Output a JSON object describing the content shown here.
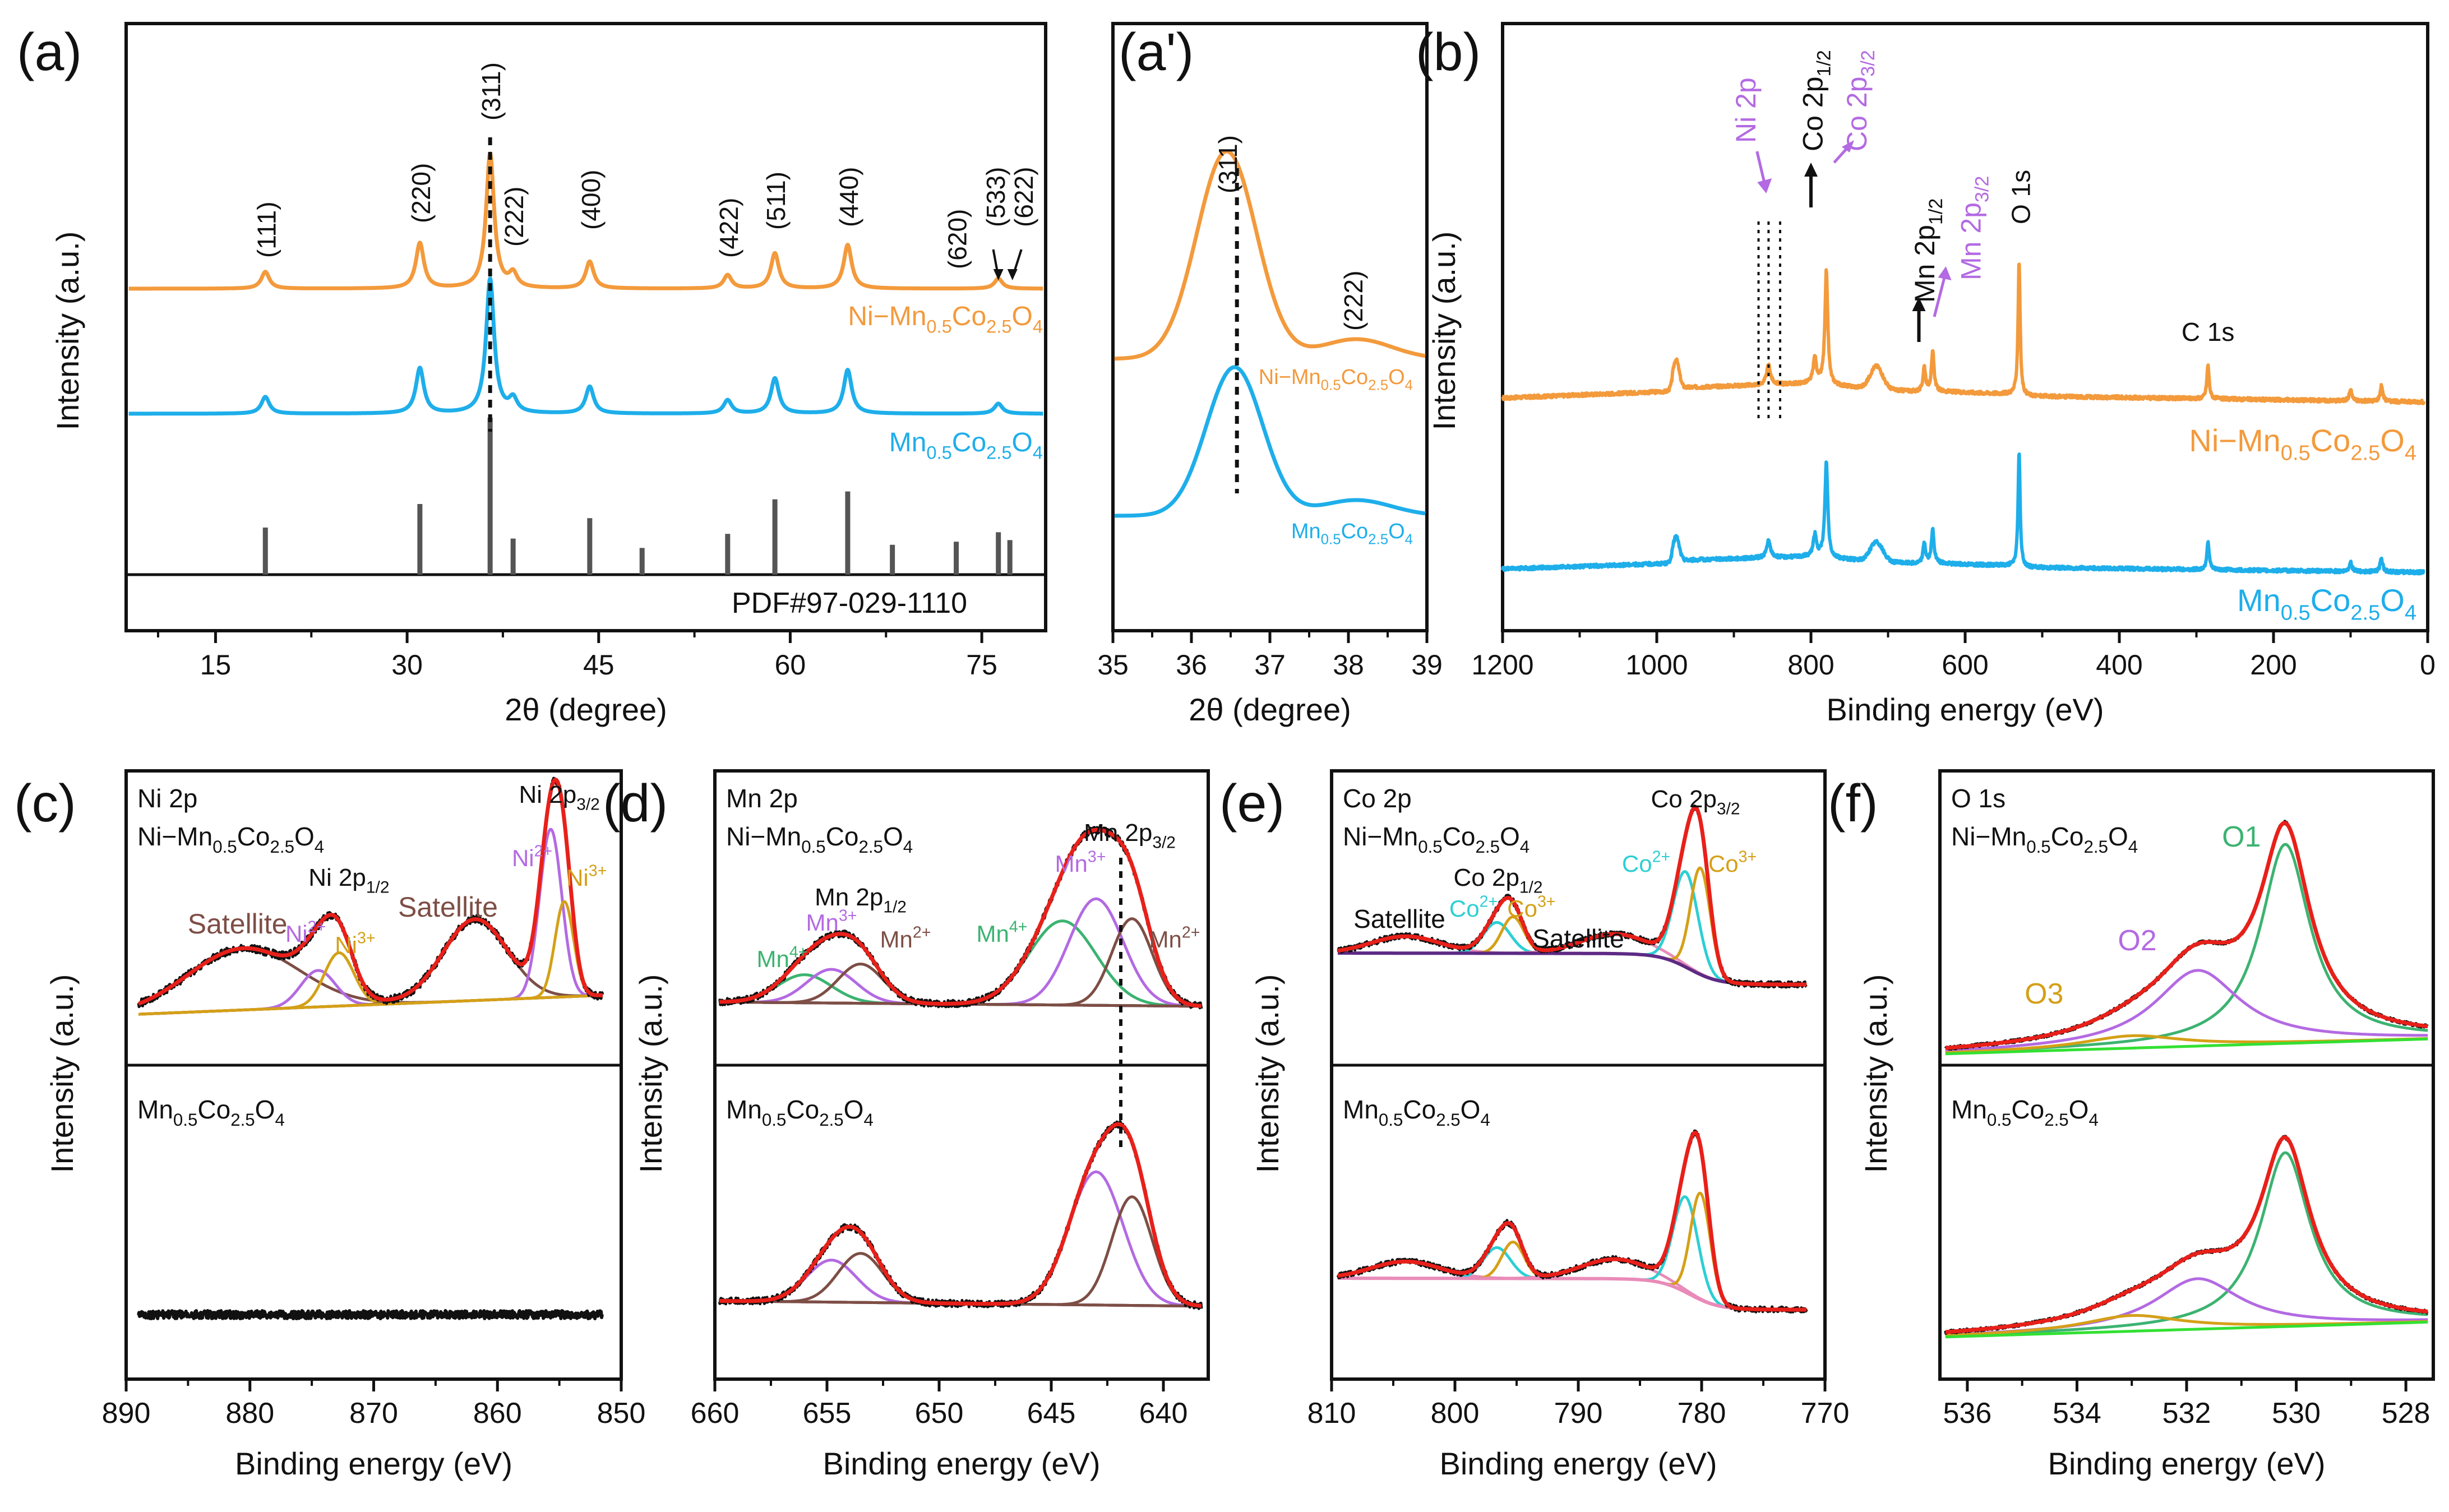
{
  "colors": {
    "orange": "#F39A3C",
    "blue": "#1EAEEA",
    "black": "#111111",
    "red": "#E8201A",
    "purple": "#B36AE2",
    "brown": "#7D4E45",
    "gold": "#D4A017",
    "green": "#3CB371",
    "cyan": "#2CCFD3",
    "darkpurple": "#5E2A84",
    "pink": "#E98BB8",
    "lime": "#33E033",
    "gray": "#555555"
  },
  "chart_data": [
    {
      "id": "a",
      "type": "line",
      "panel_label": "(a)",
      "xlabel": "2θ (degree)",
      "ylabel": "Intensity (a.u.)",
      "xlim": [
        8,
        80
      ],
      "xticks": [
        15,
        30,
        45,
        60,
        75
      ],
      "series": [
        {
          "name": "Ni−Mn0.5Co2.5O4",
          "label_html": "Ni−Mn<tspan>0.5</tspan>Co<tspan>2.5</tspan>O<tspan>4</tspan>",
          "color_key": "orange",
          "peaks_2theta": [
            18.9,
            31.0,
            36.5,
            38.3,
            44.3,
            55.1,
            58.8,
            64.5,
            76.3
          ],
          "relative_heights": [
            0.1,
            0.27,
            0.8,
            0.08,
            0.16,
            0.08,
            0.21,
            0.26,
            0.06
          ]
        },
        {
          "name": "Mn0.5Co2.5O4",
          "color_key": "blue",
          "peaks_2theta": [
            18.9,
            31.0,
            36.5,
            38.3,
            44.3,
            55.1,
            58.8,
            64.5,
            76.3
          ],
          "relative_heights": [
            0.1,
            0.27,
            0.8,
            0.08,
            0.16,
            0.08,
            0.21,
            0.26,
            0.06
          ]
        }
      ],
      "reference": {
        "label": "PDF#97-029-1110",
        "positions": [
          18.9,
          31.0,
          36.5,
          38.3,
          44.3,
          48.4,
          55.1,
          58.8,
          64.5,
          68.0,
          73.0,
          76.3,
          77.2
        ],
        "heights": [
          0.3,
          0.45,
          1.0,
          0.23,
          0.36,
          0.17,
          0.26,
          0.48,
          0.53,
          0.19,
          0.21,
          0.27,
          0.22
        ]
      },
      "annotations": [
        "(111)",
        "(220)",
        "(311)",
        "(222)",
        "(400)",
        "(422)",
        "(511)",
        "(440)",
        "(620)",
        "(533)",
        "(622)"
      ]
    },
    {
      "id": "a2",
      "type": "line",
      "panel_label": "(a')",
      "xlabel": "2θ (degree)",
      "xlim": [
        35,
        39
      ],
      "xticks": [
        35,
        36,
        37,
        38,
        39
      ],
      "series": [
        {
          "name": "Ni−Mn0.5Co2.5O4",
          "color_key": "orange",
          "peak_2theta": 36.45,
          "shoulder_2theta": 38.1
        },
        {
          "name": "Mn0.5Co2.5O4",
          "color_key": "blue",
          "peak_2theta": 36.55,
          "shoulder_2theta": 38.1
        }
      ],
      "annotations": [
        "(311)",
        "(222)"
      ]
    },
    {
      "id": "b",
      "type": "line",
      "panel_label": "(b)",
      "xlabel": "Binding energy (eV)",
      "ylabel": "Intensity (a.u.)",
      "xlim": [
        1200,
        0
      ],
      "xticks": [
        1200,
        1000,
        800,
        600,
        400,
        200,
        0
      ],
      "series": [
        {
          "name": "Ni−Mn0.5Co2.5O4",
          "color_key": "orange"
        },
        {
          "name": "Mn0.5Co2.5O4",
          "color_key": "blue"
        }
      ],
      "annotations": [
        "Ni 2p",
        "Co 2p1/2",
        "Co 2p3/2",
        "Mn 2p1/2",
        "Mn 2p3/2",
        "O 1s",
        "C 1s"
      ],
      "peaks_eV": {
        "Ni 2p": 855,
        "Co 2p1/2": 795,
        "Co 2p3/2": 780,
        "Mn 2p1/2": 653,
        "Mn 2p3/2": 642,
        "O 1s": 530,
        "C 1s": 285
      }
    },
    {
      "id": "c",
      "type": "line",
      "panel_label": "(c)",
      "xlabel": "Binding energy (eV)",
      "ylabel": "Intensity (a.u.)",
      "xlim": [
        890,
        850
      ],
      "xticks": [
        890,
        880,
        870,
        860,
        850
      ],
      "top_title": [
        "Ni 2p",
        "Ni−Mn0.5Co2.5O4"
      ],
      "bottom_title": "Mn0.5Co2.5O4",
      "components": [
        {
          "name": "Satellite",
          "center_eV": 880.5,
          "color_key": "brown"
        },
        {
          "name": "Ni2+",
          "center_eV": 874.5,
          "color_key": "purple"
        },
        {
          "name": "Ni3+",
          "center_eV": 872.8,
          "color_key": "gold"
        },
        {
          "name": "Satellite",
          "center_eV": 861.8,
          "color_key": "brown"
        },
        {
          "name": "Ni2+",
          "center_eV": 855.7,
          "color_key": "purple"
        },
        {
          "name": "Ni3+",
          "center_eV": 854.6,
          "color_key": "gold"
        }
      ],
      "annotations": [
        "Satellite",
        "Ni2+",
        "Ni 2p1/2",
        "Ni3+",
        "Satellite",
        "Ni 2p3/2",
        "Ni2+",
        "Ni3+"
      ]
    },
    {
      "id": "d",
      "type": "line",
      "panel_label": "(d)",
      "xlabel": "Binding energy (eV)",
      "ylabel": "Intensity (a.u.)",
      "xlim": [
        660,
        638
      ],
      "xticks": [
        660,
        655,
        650,
        645,
        640
      ],
      "top_title": [
        "Mn 2p",
        "Ni−Mn0.5Co2.5O4"
      ],
      "bottom_title": "Mn0.5Co2.5O4",
      "components": [
        {
          "name": "Mn4+",
          "center_eV": 656.0,
          "color_key": "green"
        },
        {
          "name": "Mn3+",
          "center_eV": 654.8,
          "color_key": "purple"
        },
        {
          "name": "Mn2+",
          "center_eV": 653.5,
          "color_key": "brown"
        },
        {
          "name": "Mn4+",
          "center_eV": 644.5,
          "color_key": "green"
        },
        {
          "name": "Mn3+",
          "center_eV": 643.0,
          "color_key": "purple"
        },
        {
          "name": "Mn2+",
          "center_eV": 641.5,
          "color_key": "brown"
        }
      ],
      "annotations": [
        "Mn 2p1/2",
        "Mn4+",
        "Mn3+",
        "Mn2+",
        "Mn 2p3/2",
        "Mn3+",
        "Mn4+",
        "Mn2+"
      ]
    },
    {
      "id": "e",
      "type": "line",
      "panel_label": "(e)",
      "xlabel": "Binding energy (eV)",
      "ylabel": "Intensity (a.u.)",
      "xlim": [
        810,
        770
      ],
      "xticks": [
        810,
        800,
        790,
        780,
        770
      ],
      "top_title": [
        "Co 2p",
        "Ni−Mn0.5Co2.5O4"
      ],
      "bottom_title": "Mn0.5Co2.5O4",
      "components": [
        {
          "name": "Satellite",
          "center_eV": 804,
          "color_key": "pink"
        },
        {
          "name": "Co2+",
          "center_eV": 796.5,
          "color_key": "cyan"
        },
        {
          "name": "Co3+",
          "center_eV": 795.3,
          "color_key": "gold"
        },
        {
          "name": "Satellite",
          "center_eV": 787,
          "color_key": "pink"
        },
        {
          "name": "Co2+",
          "center_eV": 781.3,
          "color_key": "cyan"
        },
        {
          "name": "Co3+",
          "center_eV": 780.1,
          "color_key": "gold"
        }
      ],
      "annotations": [
        "Co 2p1/2",
        "Co2+",
        "Co3+",
        "Satellite",
        "Satellite",
        "Co 2p3/2",
        "Co2+",
        "Co3+"
      ]
    },
    {
      "id": "f",
      "type": "line",
      "panel_label": "(f)",
      "xlabel": "Binding energy (eV)",
      "ylabel": "Intensity (a.u.)",
      "xlim": [
        536.5,
        527.5
      ],
      "xticks": [
        536,
        534,
        532,
        530,
        528
      ],
      "top_title": [
        "O 1s",
        "Ni−Mn0.5Co2.5O4"
      ],
      "bottom_title": "Mn0.5Co2.5O4",
      "components": [
        {
          "name": "O1",
          "center_eV": 530.2,
          "color_key": "green"
        },
        {
          "name": "O2",
          "center_eV": 531.8,
          "color_key": "purple"
        },
        {
          "name": "O3",
          "center_eV": 533.0,
          "color_key": "gold"
        }
      ],
      "annotations": [
        "O1",
        "O2",
        "O3"
      ]
    }
  ]
}
